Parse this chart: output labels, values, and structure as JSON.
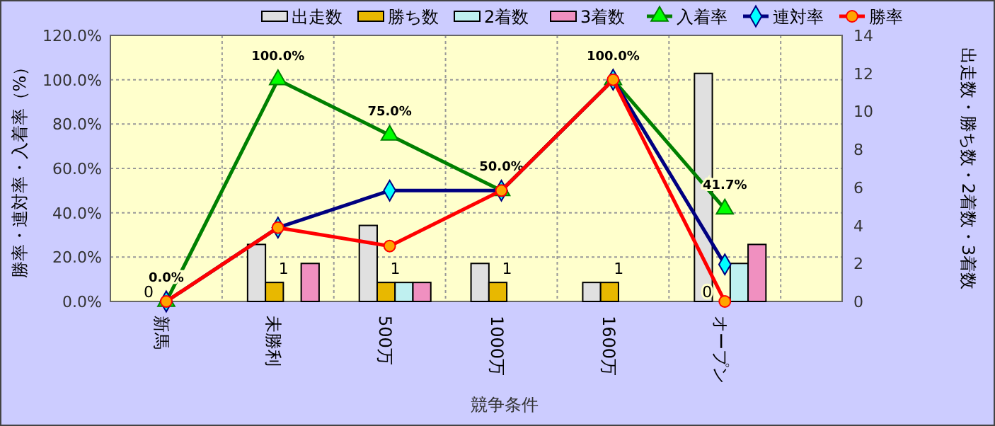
{
  "chart_data": {
    "type": "bar",
    "xlabel": "競争条件",
    "ylabel": "勝率・連対率・入着率（%）",
    "y2label": "出走数・勝ち数・2着数・3着数",
    "categories": [
      "新馬",
      "未勝利",
      "500万",
      "1000万",
      "1600万",
      "オープン"
    ],
    "series": [
      {
        "name": "出走数",
        "axis": "y2",
        "color": "#e0e0e0",
        "values": [
          0,
          3,
          4,
          2,
          1,
          12
        ]
      },
      {
        "name": "勝ち数",
        "axis": "y2",
        "color": "#e8b800",
        "values": [
          0,
          1,
          1,
          1,
          1,
          0
        ],
        "value_labels": [
          "0",
          "1",
          "1",
          "1",
          "1",
          "0"
        ]
      },
      {
        "name": "2着数",
        "axis": "y2",
        "color": "#bff0f0",
        "values": [
          0,
          0,
          1,
          0,
          0,
          2
        ]
      },
      {
        "name": "3着数",
        "axis": "y2",
        "color": "#f090c0",
        "values": [
          0,
          2,
          1,
          0,
          0,
          3
        ]
      },
      {
        "name": "入着率",
        "type": "line",
        "marker": "triangle",
        "color": "#008000",
        "values": [
          0,
          100,
          75,
          50,
          100,
          41.7
        ],
        "value_labels": [
          "0.0%",
          "100.0%",
          "75.0%",
          "50.0%",
          "100.0%",
          "41.7%"
        ]
      },
      {
        "name": "連対率",
        "type": "line",
        "marker": "diamond",
        "color": "#000080",
        "values": [
          0,
          33.3,
          50,
          50,
          100,
          16.7
        ]
      },
      {
        "name": "勝率",
        "type": "line",
        "marker": "circle",
        "color": "#ff0000",
        "values": [
          0,
          33.3,
          25,
          50,
          100,
          0
        ]
      }
    ],
    "ylim": [
      0,
      120
    ],
    "yticks": [
      {
        "value": 0,
        "label": "0.0%"
      },
      {
        "value": 20,
        "label": "20.0%"
      },
      {
        "value": 40,
        "label": "40.0%"
      },
      {
        "value": 60,
        "label": "60.0%"
      },
      {
        "value": 80,
        "label": "80.0%"
      },
      {
        "value": 100,
        "label": "100.0%"
      },
      {
        "value": 120,
        "label": "120.0%"
      }
    ],
    "y2lim": [
      0,
      14
    ],
    "y2ticks": [
      0,
      2,
      4,
      6,
      8,
      10,
      12,
      14
    ],
    "grid": true,
    "legend": "top",
    "line_style": "solid"
  }
}
